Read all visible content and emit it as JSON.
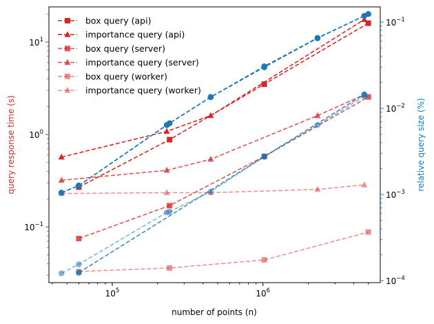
{
  "chart_data": {
    "type": "line",
    "x": [
      46000,
      60000,
      230000,
      240000,
      450000,
      1020000,
      2300000,
      4700000,
      5000000
    ],
    "x_scale": "log",
    "xlim": [
      38000,
      6000000
    ],
    "xlabel": "number of points (n)",
    "x_ticks": [
      {
        "value": 100000,
        "base": "10",
        "exp": "5"
      },
      {
        "value": 1000000,
        "base": "10",
        "exp": "6"
      }
    ],
    "left_axis": {
      "ylabel": "query response time (s)",
      "scale": "log",
      "ylim": [
        0.025,
        24
      ],
      "color": "#d62728",
      "ticks": [
        {
          "value": 0.1,
          "base": "10",
          "exp": "−1"
        },
        {
          "value": 1,
          "base": "10",
          "exp": "0"
        },
        {
          "value": 10,
          "base": "10",
          "exp": "1"
        }
      ]
    },
    "right_axis": {
      "ylabel": "relative query size (%)",
      "scale": "log",
      "ylim": [
        9.5e-05,
        0.15
      ],
      "color": "#1f77b4",
      "ticks": [
        {
          "value": 0.0001,
          "base": "10",
          "exp": "−4"
        },
        {
          "value": 0.001,
          "base": "10",
          "exp": "−3"
        },
        {
          "value": 0.01,
          "base": "10",
          "exp": "−2"
        },
        {
          "value": 0.1,
          "base": "10",
          "exp": "−1"
        }
      ]
    },
    "legend": {
      "placement": "top-left"
    },
    "series": [
      {
        "name": "box query (api)",
        "axis": "left",
        "marker": "square",
        "color": "#d62728",
        "opacity": 1.0,
        "points": [
          [
            60000,
            0.27
          ],
          [
            240000,
            0.88
          ],
          [
            1020000,
            3.5
          ],
          [
            5000000,
            16.0
          ]
        ]
      },
      {
        "name": "importance query (api)",
        "axis": "left",
        "marker": "triangle",
        "color": "#d62728",
        "opacity": 1.0,
        "points": [
          [
            46000,
            0.57
          ],
          [
            230000,
            1.08
          ],
          [
            450000,
            1.6
          ],
          [
            4700000,
            17.5
          ]
        ]
      },
      {
        "name": "box query (server)",
        "axis": "left",
        "marker": "square",
        "color": "#d62728",
        "opacity": 0.78,
        "points": [
          [
            60000,
            0.075
          ],
          [
            240000,
            0.17
          ],
          [
            1020000,
            0.58
          ],
          [
            5000000,
            2.55
          ]
        ]
      },
      {
        "name": "importance query (server)",
        "axis": "left",
        "marker": "triangle",
        "color": "#d62728",
        "opacity": 0.78,
        "points": [
          [
            46000,
            0.32
          ],
          [
            230000,
            0.41
          ],
          [
            450000,
            0.54
          ],
          [
            2300000,
            1.6
          ],
          [
            4700000,
            2.7
          ]
        ]
      },
      {
        "name": "box query (worker)",
        "axis": "left",
        "marker": "square",
        "color": "#d62728",
        "opacity": 0.5,
        "points": [
          [
            60000,
            0.033
          ],
          [
            240000,
            0.036
          ],
          [
            1020000,
            0.044
          ],
          [
            5000000,
            0.088
          ]
        ]
      },
      {
        "name": "importance query (worker)",
        "axis": "left",
        "marker": "triangle",
        "color": "#d62728",
        "opacity": 0.5,
        "points": [
          [
            46000,
            0.23
          ],
          [
            230000,
            0.235
          ],
          [
            450000,
            0.235
          ],
          [
            2300000,
            0.255
          ],
          [
            4700000,
            0.285
          ]
        ]
      },
      {
        "name": "",
        "axis": "right",
        "marker": "circle",
        "color": "#1f77b4",
        "opacity": 1.0,
        "points": [
          [
            46000,
            0.00105
          ],
          [
            60000,
            0.00127
          ],
          [
            240000,
            0.0067
          ],
          [
            450000,
            0.0135
          ],
          [
            1020000,
            0.0306
          ],
          [
            2300000,
            0.0655
          ],
          [
            5000000,
            0.124
          ]
        ]
      },
      {
        "name": "",
        "axis": "right",
        "marker": "circle",
        "color": "#1f77b4",
        "opacity": 1.0,
        "points": [
          [
            46000,
            0.00105
          ],
          [
            60000,
            0.00127
          ],
          [
            230000,
            0.0064
          ],
          [
            450000,
            0.0135
          ],
          [
            1020000,
            0.03
          ],
          [
            2300000,
            0.065
          ],
          [
            4700000,
            0.118
          ]
        ]
      },
      {
        "name": "",
        "axis": "right",
        "marker": "circle",
        "color": "#1f77b4",
        "opacity": 0.85,
        "points": [
          [
            60000,
            0.000124
          ],
          [
            1020000,
            0.00275
          ],
          [
            4700000,
            0.0145
          ]
        ]
      },
      {
        "name": "",
        "axis": "right",
        "marker": "circle",
        "color": "#1f77b4",
        "opacity": 0.55,
        "points": [
          [
            46000,
            0.000122
          ],
          [
            60000,
            0.000155
          ],
          [
            230000,
            0.00062
          ],
          [
            240000,
            0.00063
          ],
          [
            450000,
            0.00108
          ],
          [
            1020000,
            0.00275
          ],
          [
            2300000,
            0.0064
          ],
          [
            4700000,
            0.0138
          ]
        ]
      }
    ]
  }
}
